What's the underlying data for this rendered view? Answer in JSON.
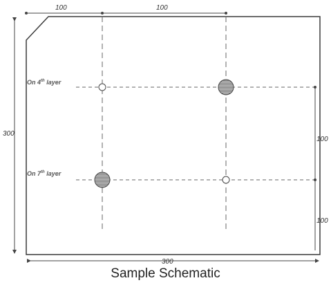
{
  "caption": "Sample Schematic",
  "dimensions": {
    "top_left": "100",
    "top_right": "100",
    "left_side": "300",
    "bottom": "300",
    "right_upper": "100",
    "right_lower": "100"
  },
  "layers": {
    "upper": {
      "prefix": "On 4",
      "sup": "th",
      "suffix": " layer"
    },
    "lower": {
      "prefix": "On 7",
      "sup": "th",
      "suffix": " layer"
    }
  },
  "colors": {
    "outline": "#3a3a3a",
    "dashed": "#666666",
    "hole_fill": "#9a9a9a"
  }
}
